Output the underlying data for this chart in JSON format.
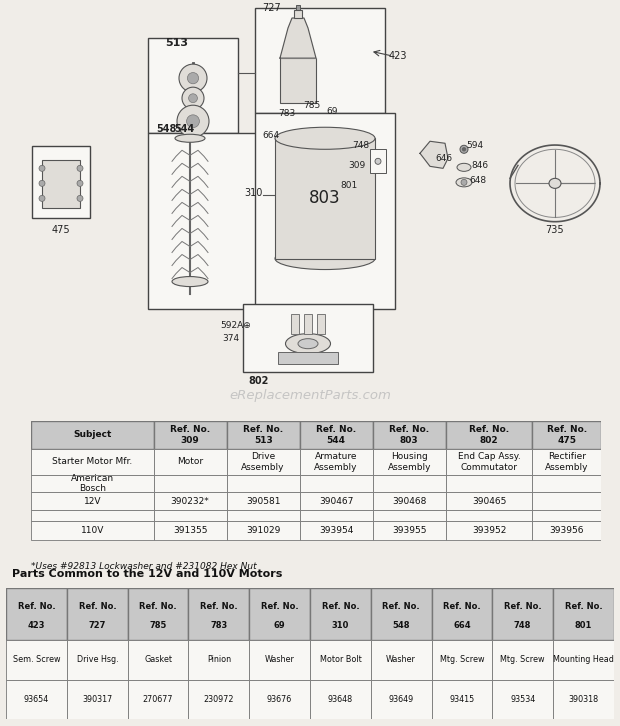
{
  "background_color": "#f0ede8",
  "watermark": "eReplacementParts.com",
  "table1": {
    "headers_row1": [
      "Subject",
      "Ref. No.\n309",
      "Ref. No.\n513",
      "Ref. No.\n544",
      "Ref. No.\n803",
      "Ref. No.\n802",
      "Ref. No.\n475"
    ],
    "headers_row2": [
      "Starter Motor Mfr.",
      "Motor",
      "Drive\nAssembly",
      "Armature\nAssembly",
      "Housing\nAssembly",
      "End Cap Assy.\nCommutator",
      "Rectifier\nAssembly"
    ],
    "row_american_bosch": [
      "American\nBosch",
      "",
      "",
      "",
      "",
      "",
      ""
    ],
    "row_12v": [
      "12V",
      "390232*",
      "390581",
      "390467",
      "390468",
      "390465",
      ""
    ],
    "row_empty": [
      "",
      "",
      "",
      "",
      "",
      "",
      ""
    ],
    "row_110v": [
      "110V",
      "391355",
      "391029",
      "393954",
      "393955",
      "393952",
      "393956"
    ],
    "footnote": "*Uses #92813 Lockwasher and #231082 Hex Nut"
  },
  "table2": {
    "title": "Parts Common to the 12V and 110V Motors",
    "col_headers": [
      [
        "Ref. No.",
        "423"
      ],
      [
        "Ref. No.",
        "727"
      ],
      [
        "Ref. No.",
        "785"
      ],
      [
        "Ref. No.",
        "783"
      ],
      [
        "Ref. No.",
        "69"
      ],
      [
        "Ref. No.",
        "310"
      ],
      [
        "Ref. No.",
        "548"
      ],
      [
        "Ref. No.",
        "664"
      ],
      [
        "Ref. No.",
        "748"
      ],
      [
        "Ref. No.",
        "801"
      ]
    ],
    "data_row1": [
      "Sem. Screw",
      "Drive Hsg.",
      "Gasket",
      "Pinion",
      "Washer",
      "Motor Bolt",
      "Washer",
      "Mtg. Screw",
      "Mtg. Screw",
      "Mounting Head"
    ],
    "data_row2": [
      "93654",
      "390317",
      "270677",
      "230972",
      "93676",
      "93648",
      "93649",
      "93415",
      "93534",
      "390318"
    ]
  }
}
